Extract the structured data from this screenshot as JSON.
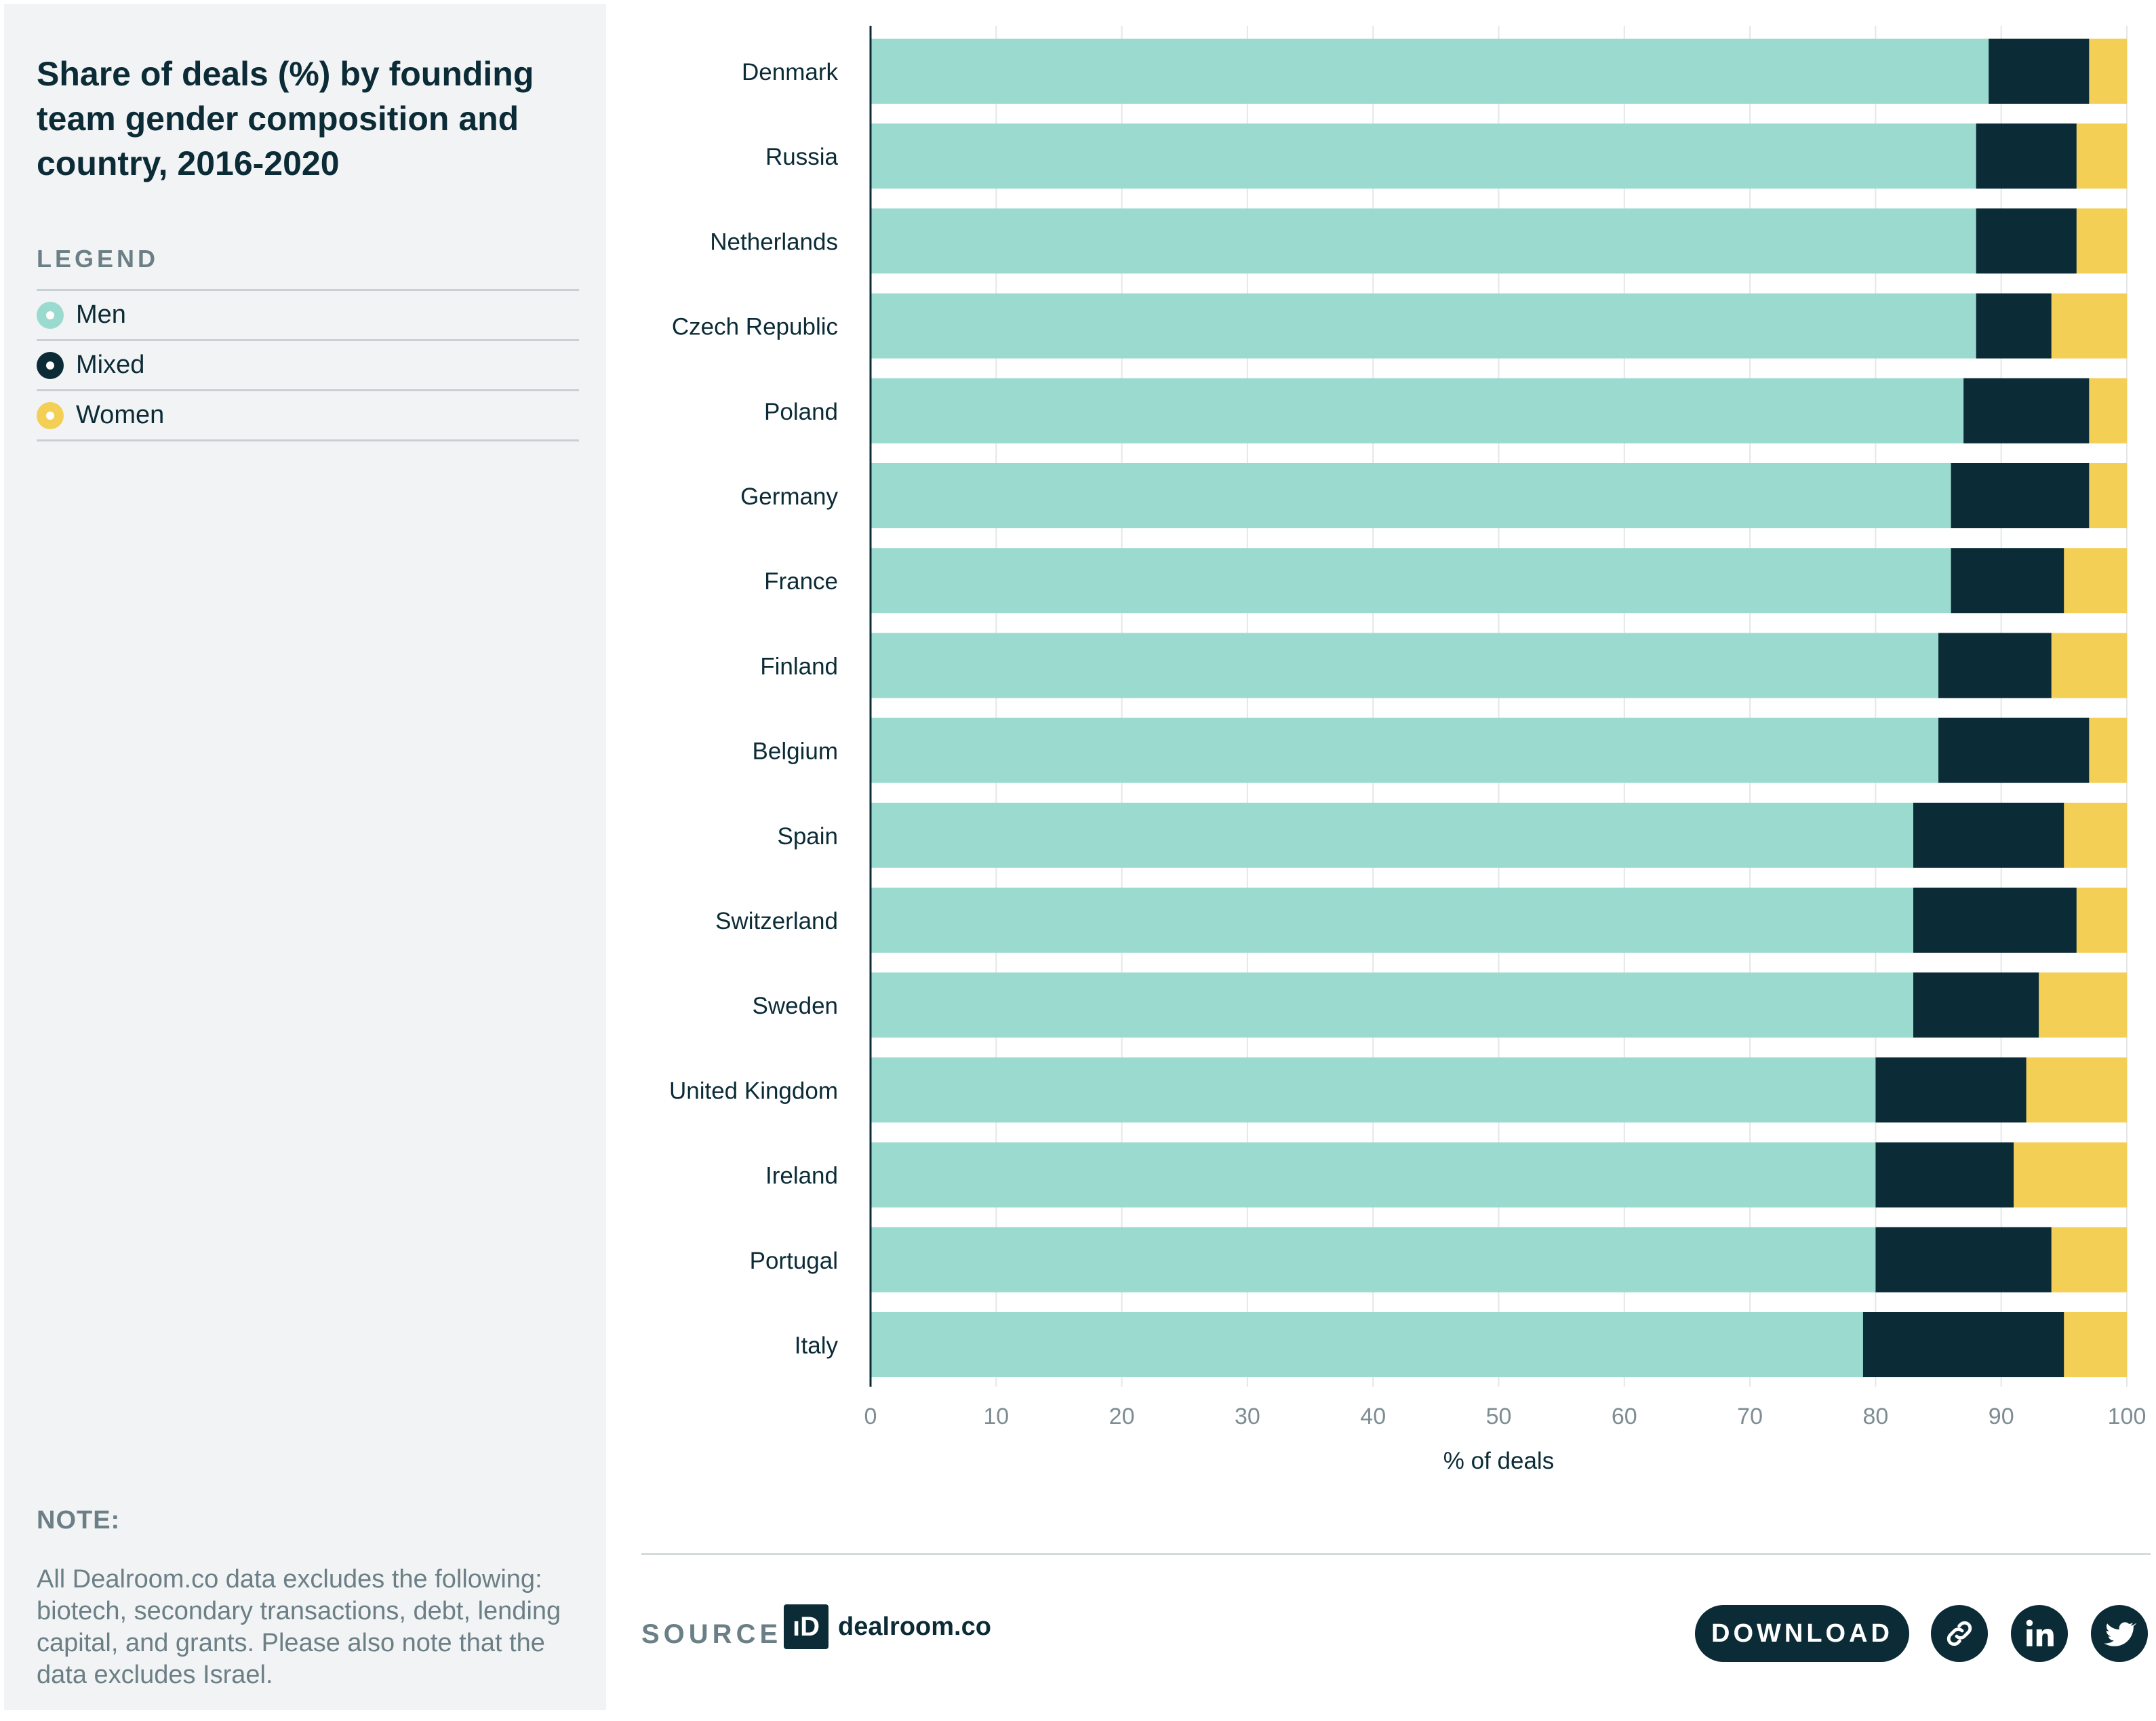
{
  "title": "Share of deals (%) by founding team gender composition and country, 2016-2020",
  "legend": {
    "heading": "LEGEND",
    "items": [
      {
        "label": "Men",
        "color": "#9bdbcf"
      },
      {
        "label": "Mixed",
        "color": "#0b2b36"
      },
      {
        "label": "Women",
        "color": "#f4cf56"
      }
    ]
  },
  "note": {
    "heading": "NOTE:",
    "text": "All Dealroom.co data excludes the following: biotech, secondary transactions, debt, lending capital, and grants. Please also note that the data excludes Israel."
  },
  "footer": {
    "source_label": "SOURCE:",
    "logo_text": "dealroom.co",
    "logo_mark": "ıD",
    "download_label": "DOWNLOAD",
    "icons": [
      "link-icon",
      "linkedin-icon",
      "twitter-icon"
    ]
  },
  "chart_data": {
    "type": "bar",
    "orientation": "horizontal",
    "stacked": true,
    "categories": [
      "Denmark",
      "Russia",
      "Netherlands",
      "Czech Republic",
      "Poland",
      "Germany",
      "France",
      "Finland",
      "Belgium",
      "Spain",
      "Switzerland",
      "Sweden",
      "United Kingdom",
      "Ireland",
      "Portugal",
      "Italy"
    ],
    "series": [
      {
        "name": "Men",
        "color": "#9bdbcf",
        "values": [
          89,
          88,
          88,
          88,
          87,
          86,
          86,
          85,
          85,
          83,
          83,
          83,
          80,
          80,
          80,
          79
        ]
      },
      {
        "name": "Mixed",
        "color": "#0b2b36",
        "values": [
          8,
          8,
          8,
          6,
          10,
          11,
          9,
          9,
          12,
          12,
          13,
          10,
          12,
          11,
          14,
          16
        ]
      },
      {
        "name": "Women",
        "color": "#f4cf56",
        "values": [
          3,
          4,
          4,
          6,
          3,
          3,
          5,
          6,
          3,
          5,
          4,
          7,
          8,
          9,
          6,
          5
        ]
      }
    ],
    "xlabel": "% of deals",
    "ylabel": "",
    "xlim": [
      0,
      100
    ],
    "xticks": [
      0,
      10,
      20,
      30,
      40,
      50,
      60,
      70,
      80,
      90,
      100
    ],
    "grid": true
  }
}
